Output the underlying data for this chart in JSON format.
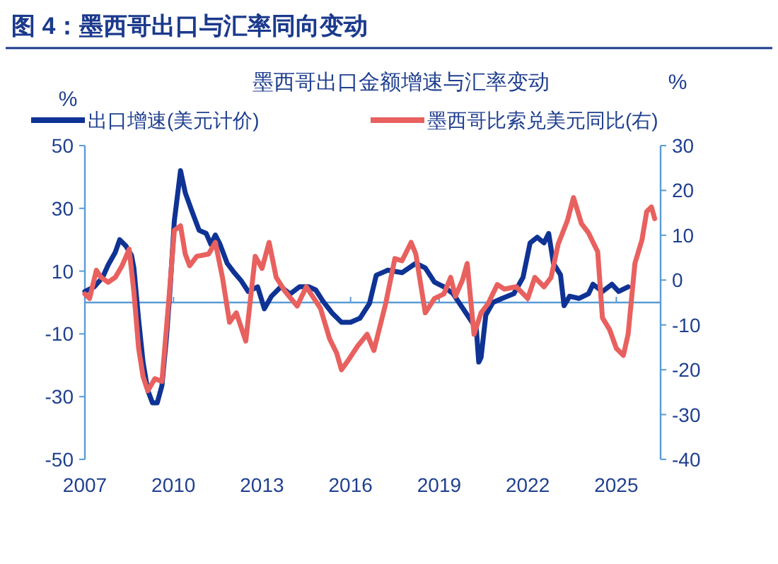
{
  "chart_data": {
    "type": "line",
    "title": "图 4：墨西哥出口与汇率同向变动",
    "subtitle": "墨西哥出口金额增速与汇率变动",
    "ylabel": "%",
    "y2label": "%",
    "xlim": [
      2007,
      2026.5
    ],
    "xticks": [
      2007,
      2010,
      2013,
      2016,
      2019,
      2022,
      2025
    ],
    "ylim": [
      -50,
      50
    ],
    "yticks": [
      -50,
      -30,
      -10,
      10,
      30,
      50
    ],
    "y2lim": [
      -40,
      30
    ],
    "y2ticks": [
      -40,
      -30,
      -20,
      -10,
      0,
      10,
      20,
      30
    ],
    "ref_lines": [
      {
        "axis": "y",
        "value": 0,
        "color": "#5b9bd5"
      }
    ],
    "legend": "top",
    "grid": false,
    "marker": "none",
    "line_style": "solid",
    "series": [
      {
        "name": "出口增速(美元计价)",
        "color": "#0f3394",
        "axis": "y",
        "x": [
          2007.0,
          2007.32,
          2007.6,
          2007.79,
          2008.03,
          2008.18,
          2008.39,
          2008.58,
          2008.66,
          2008.82,
          2008.97,
          2009.13,
          2009.29,
          2009.45,
          2009.61,
          2009.76,
          2009.88,
          2010.03,
          2010.24,
          2010.4,
          2010.63,
          2010.87,
          2011.11,
          2011.27,
          2011.42,
          2011.58,
          2011.82,
          2012.06,
          2012.29,
          2012.53,
          2012.85,
          2013.08,
          2013.32,
          2013.64,
          2013.95,
          2014.27,
          2014.58,
          2014.82,
          2015.06,
          2015.37,
          2015.69,
          2016.0,
          2016.32,
          2016.64,
          2016.87,
          2017.19,
          2017.26,
          2017.74,
          2018.21,
          2018.53,
          2018.84,
          2019.16,
          2019.47,
          2019.79,
          2020.11,
          2020.26,
          2020.34,
          2020.42,
          2020.58,
          2020.82,
          2021.13,
          2021.53,
          2021.84,
          2022.08,
          2022.32,
          2022.55,
          2022.71,
          2022.87,
          2023.11,
          2023.23,
          2023.42,
          2023.74,
          2024.06,
          2024.21,
          2024.53,
          2024.85,
          2025.08,
          2025.4
        ],
        "values": [
          3.5,
          5,
          8,
          12,
          16,
          20,
          18,
          15,
          11,
          -5.5,
          -19,
          -28,
          -32,
          -32,
          -26.5,
          -11.5,
          3.5,
          26,
          42,
          35,
          29,
          23,
          22,
          18.5,
          21.5,
          18.5,
          12.5,
          9.5,
          7,
          3.5,
          5,
          -2,
          2,
          5,
          2.7,
          5,
          5,
          4,
          0.5,
          -3.3,
          -6.3,
          -6.3,
          -5,
          -0.3,
          8.7,
          10,
          10.3,
          9.5,
          12.5,
          11,
          6.5,
          5,
          2.8,
          -1.7,
          -6.2,
          -8.5,
          -19,
          -17.5,
          -4,
          0,
          1.3,
          2.8,
          8,
          19,
          20.8,
          19,
          22,
          12.5,
          8.8,
          -1,
          2,
          1.3,
          2.8,
          5.8,
          3.5,
          5.8,
          3.5,
          5
        ]
      },
      {
        "name": "墨西哥比索兑美元同比(右)",
        "color": "#e8615f",
        "axis": "y2",
        "x": [
          2007.0,
          2007.16,
          2007.39,
          2007.55,
          2007.79,
          2008.03,
          2008.26,
          2008.5,
          2008.66,
          2008.82,
          2008.97,
          2009.13,
          2009.37,
          2009.61,
          2009.84,
          2010.03,
          2010.24,
          2010.4,
          2010.55,
          2010.79,
          2011.19,
          2011.42,
          2011.66,
          2011.9,
          2012.13,
          2012.45,
          2012.77,
          2013.0,
          2013.24,
          2013.48,
          2013.79,
          2014.19,
          2014.5,
          2014.98,
          2015.29,
          2015.53,
          2015.69,
          2015.93,
          2016.24,
          2016.56,
          2016.79,
          2017.03,
          2017.19,
          2017.5,
          2017.74,
          2018.05,
          2018.21,
          2018.53,
          2018.84,
          2019.16,
          2019.39,
          2019.55,
          2019.79,
          2019.95,
          2020.18,
          2020.42,
          2020.66,
          2020.97,
          2021.21,
          2021.61,
          2022.0,
          2022.24,
          2022.55,
          2022.79,
          2023.03,
          2023.34,
          2023.55,
          2023.82,
          2024.06,
          2024.37,
          2024.53,
          2024.77,
          2025.0,
          2025.24,
          2025.4,
          2025.63,
          2025.87,
          2026.03,
          2026.19,
          2026.3
        ],
        "values": [
          -3.1,
          -4.1,
          2.2,
          0.6,
          -0.5,
          0.6,
          3.2,
          6.9,
          -2.6,
          -15.2,
          -21.5,
          -24.7,
          -22,
          -22.6,
          -4.7,
          11.1,
          12.1,
          5.8,
          3.2,
          5.3,
          5.8,
          8.4,
          0.6,
          -9.4,
          -7.3,
          -13.6,
          5.3,
          2.6,
          8.4,
          0.6,
          -2.6,
          -5.8,
          -1.5,
          -6.3,
          -13.1,
          -16.3,
          -20,
          -17.8,
          -14.7,
          -12.1,
          -15.7,
          -9.4,
          -5.2,
          4.8,
          4.3,
          8.4,
          5.8,
          -7.3,
          -4.1,
          -3.1,
          0.6,
          -3.6,
          0,
          3.7,
          -12.1,
          -7.3,
          -5.2,
          -1,
          -2,
          -1.5,
          -4.1,
          0.6,
          -1.5,
          0.6,
          8,
          13.2,
          18.4,
          12.6,
          10.5,
          6.3,
          -8.4,
          -11,
          -15.2,
          -16.8,
          -12.1,
          3.7,
          9,
          15.3,
          16.3,
          13.7
        ]
      }
    ]
  }
}
